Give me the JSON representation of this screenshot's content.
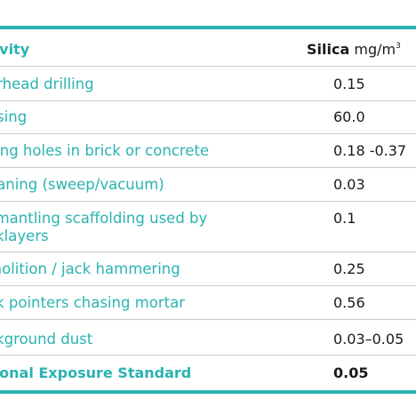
{
  "colors": {
    "accent": "#2ab3b1",
    "text": "#1a1a1a",
    "divider": "#c9c9c9"
  },
  "table": {
    "header": {
      "activity": "tivity",
      "silica_label": "Silica",
      "silica_unit": " mg/m",
      "silica_unit_sup": "3"
    },
    "rows": [
      {
        "activity": "erhead drilling",
        "silica": "0.15"
      },
      {
        "activity": "asing",
        "silica": "60.0"
      },
      {
        "activity": "lling holes in brick or concrete",
        "silica": "0.18 -0.37"
      },
      {
        "activity": "eaning (sweep/vacuum)",
        "silica": "0.03"
      },
      {
        "activity_line1": "smantling scaffolding used by",
        "activity_line2": "cklayers",
        "silica": "0.1"
      },
      {
        "activity": "molition / jack hammering",
        "silica": "0.25"
      },
      {
        "activity": "ck pointers chasing mortar",
        "silica": "0.56"
      },
      {
        "activity": "ckground dust",
        "silica": "0.03–0.05"
      }
    ],
    "standard": {
      "activity": "tional Exposure Standard",
      "silica": "0.05"
    }
  }
}
